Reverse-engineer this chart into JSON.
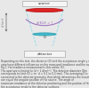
{
  "source_label": "source",
  "detector_label": "detector",
  "left_label": "d (or r)",
  "arc_label": "d(ELV) = ?",
  "d_label": "D",
  "source_color": "#dd2222",
  "source_edge": "#aa1111",
  "detector_color": "#44bbcc",
  "detector_edge": "#2299aa",
  "cone_color": "#88ddee",
  "arc_color": "#9966bb",
  "bg_color": "#eeeeee",
  "box_color": "#f5f5f5",
  "box_edge": "#aaaaaa",
  "dim_color": "#666666",
  "text_color": "#333333",
  "caption_color": "#444444",
  "fig_bg": "#e8e8e8"
}
